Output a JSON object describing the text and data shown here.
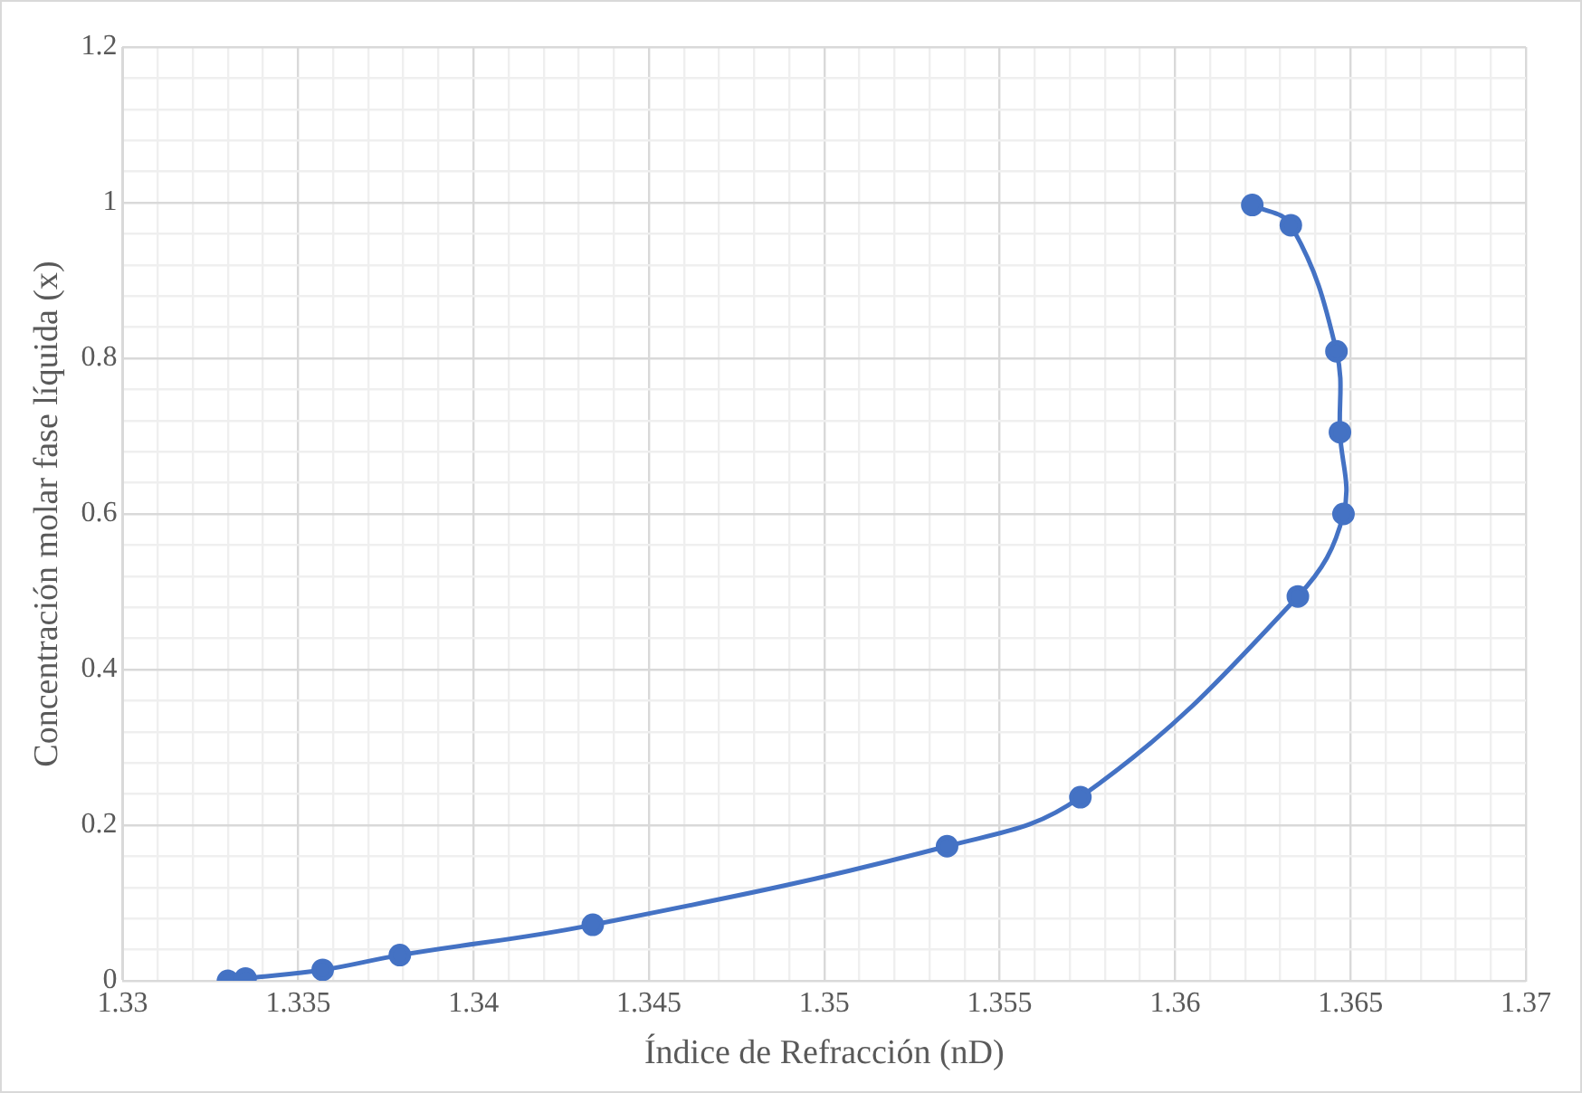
{
  "chart_data": {
    "type": "line",
    "xlabel": "Índice de Refracción (nD)",
    "ylabel": "Concentración molar fase líquida (x)",
    "x": [
      1.333,
      1.3335,
      1.3357,
      1.3379,
      1.3434,
      1.3535,
      1.3573,
      1.3635,
      1.3648,
      1.3647,
      1.3646,
      1.3633,
      1.3622
    ],
    "series": [
      {
        "color": "#4472c4",
        "values": [
          0,
          0.003,
          0.014,
          0.033,
          0.072,
          0.173,
          0.236,
          0.494,
          0.6,
          0.705,
          0.809,
          0.971,
          0.997
        ]
      }
    ],
    "xlim": [
      1.33,
      1.37
    ],
    "ylim": [
      0,
      1.2
    ],
    "xticks": [
      1.33,
      {
        "value": 1.331,
        "label": null
      },
      {
        "value": 1.332,
        "label": null
      },
      {
        "value": 1.333,
        "label": null
      },
      {
        "value": 1.334,
        "label": null
      },
      1.335,
      {
        "value": 1.336,
        "label": null
      },
      {
        "value": 1.337,
        "label": null
      },
      {
        "value": 1.338,
        "label": null
      },
      {
        "value": 1.339,
        "label": null
      },
      1.34,
      {
        "value": 1.341,
        "label": null
      },
      {
        "value": 1.342,
        "label": null
      },
      {
        "value": 1.343,
        "label": null
      },
      {
        "value": 1.344,
        "label": null
      },
      1.345,
      {
        "value": 1.346,
        "label": null
      },
      {
        "value": 1.347,
        "label": null
      },
      {
        "value": 1.348,
        "label": null
      },
      {
        "value": 1.349,
        "label": null
      },
      1.35,
      {
        "value": 1.351,
        "label": null
      },
      {
        "value": 1.352,
        "label": null
      },
      {
        "value": 1.353,
        "label": null
      },
      {
        "value": 1.354,
        "label": null
      },
      1.355,
      {
        "value": 1.356,
        "label": null
      },
      {
        "value": 1.357,
        "label": null
      },
      {
        "value": 1.358,
        "label": null
      },
      {
        "value": 1.359,
        "label": null
      },
      1.36,
      {
        "value": 1.361,
        "label": null
      },
      {
        "value": 1.362,
        "label": null
      },
      {
        "value": 1.363,
        "label": null
      },
      {
        "value": 1.364,
        "label": null
      },
      1.365,
      {
        "value": 1.366,
        "label": null
      },
      {
        "value": 1.367,
        "label": null
      },
      {
        "value": 1.368,
        "label": null
      },
      {
        "value": 1.369,
        "label": null
      },
      1.37
    ],
    "yticks": [
      0,
      {
        "value": 0.04,
        "label": null
      },
      {
        "value": 0.08,
        "label": null
      },
      {
        "value": 0.12,
        "label": null
      },
      {
        "value": 0.16,
        "label": null
      },
      0.2,
      {
        "value": 0.24,
        "label": null
      },
      {
        "value": 0.28,
        "label": null
      },
      {
        "value": 0.32,
        "label": null
      },
      {
        "value": 0.36,
        "label": null
      },
      0.4,
      {
        "value": 0.44,
        "label": null
      },
      {
        "value": 0.48,
        "label": null
      },
      {
        "value": 0.52,
        "label": null
      },
      {
        "value": 0.56,
        "label": null
      },
      0.6,
      {
        "value": 0.64,
        "label": null
      },
      {
        "value": 0.68,
        "label": null
      },
      {
        "value": 0.72,
        "label": null
      },
      {
        "value": 0.76,
        "label": null
      },
      0.8,
      {
        "value": 0.84,
        "label": null
      },
      {
        "value": 0.88,
        "label": null
      },
      {
        "value": 0.92,
        "label": null
      },
      {
        "value": 0.96,
        "label": null
      },
      1,
      {
        "value": 1.04,
        "label": null
      },
      {
        "value": 1.08,
        "label": null
      },
      {
        "value": 1.12,
        "label": null
      },
      {
        "value": 1.16,
        "label": null
      },
      1.2
    ],
    "grid": true,
    "marker": "circle",
    "line_style": "solid"
  }
}
